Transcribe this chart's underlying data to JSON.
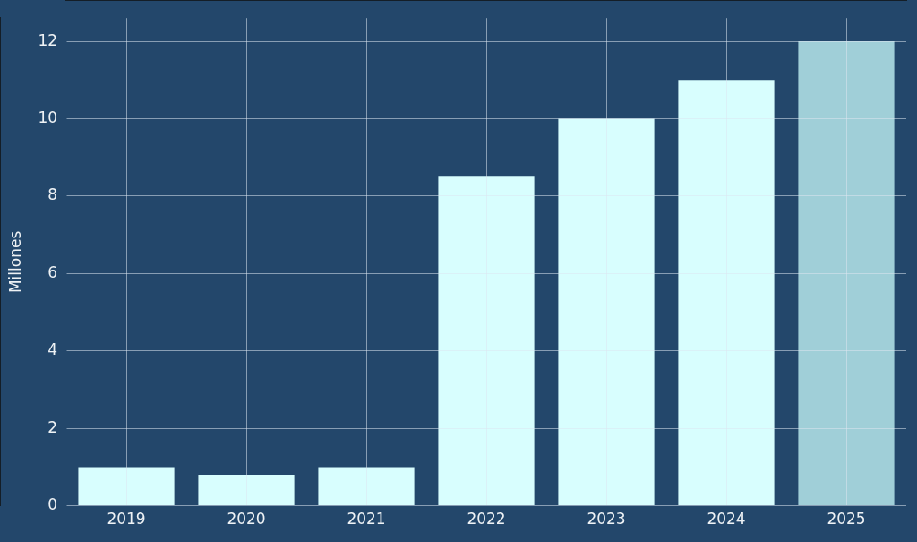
{
  "chart_data": {
    "type": "bar",
    "ylabel": "Millones",
    "categories": [
      "2019",
      "2020",
      "2021",
      "2022",
      "2023",
      "2024",
      "2025"
    ],
    "values": [
      1,
      0.8,
      1,
      8.5,
      10,
      11,
      12
    ],
    "colors": [
      "#d8fefe",
      "#d8fefe",
      "#d8fefe",
      "#d8fefe",
      "#d8fefe",
      "#d8fefe",
      "#a0cfd8"
    ],
    "ylim": [
      0,
      12.6
    ],
    "yticks": [
      0,
      2,
      4,
      6,
      8,
      10,
      12
    ],
    "grid": true,
    "legend": false
  }
}
